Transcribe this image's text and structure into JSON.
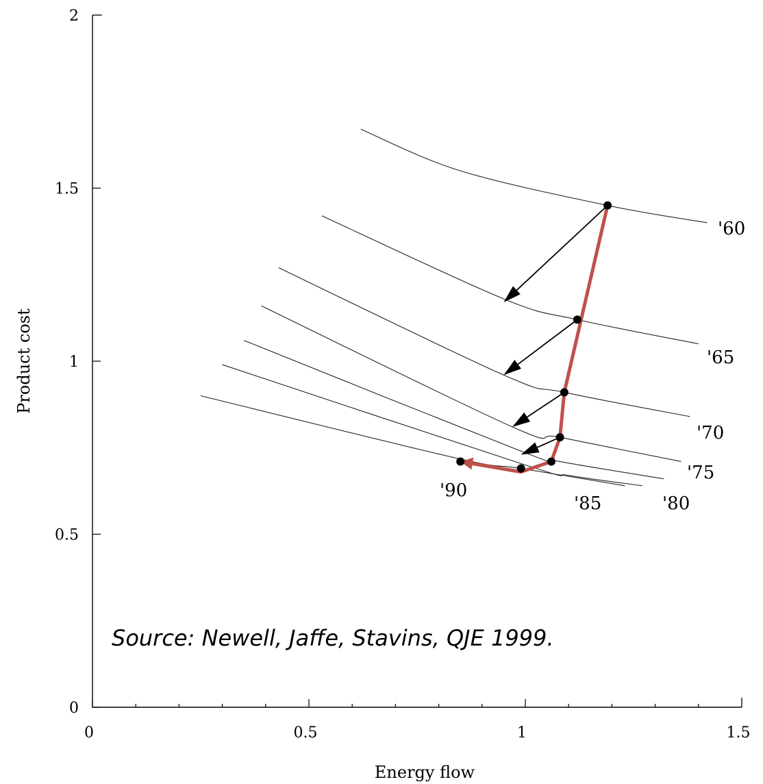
{
  "chart_data": {
    "type": "line",
    "xlabel": "Energy flow",
    "ylabel": "Product cost",
    "xlim": [
      0,
      1.5
    ],
    "ylim": [
      0,
      2
    ],
    "x_ticks": [
      "0",
      "0.5",
      "1",
      "1.5"
    ],
    "y_ticks": [
      "0",
      "0.5",
      "1",
      "1.5",
      "2"
    ],
    "grid": false,
    "series": [
      {
        "name": "'60",
        "points": [
          [
            0.62,
            1.67
          ],
          [
            0.85,
            1.55
          ],
          [
            1.19,
            1.45
          ],
          [
            1.42,
            1.4
          ]
        ]
      },
      {
        "name": "'65",
        "points": [
          [
            0.53,
            1.42
          ],
          [
            0.95,
            1.18
          ],
          [
            1.12,
            1.12
          ],
          [
            1.4,
            1.05
          ]
        ]
      },
      {
        "name": "'70",
        "points": [
          [
            0.43,
            1.27
          ],
          [
            0.95,
            0.96
          ],
          [
            1.09,
            0.91
          ],
          [
            1.38,
            0.84
          ]
        ]
      },
      {
        "name": "'75",
        "points": [
          [
            0.39,
            1.16
          ],
          [
            0.97,
            0.81
          ],
          [
            1.08,
            0.78
          ],
          [
            1.36,
            0.71
          ]
        ]
      },
      {
        "name": "'80",
        "points": [
          [
            0.35,
            1.06
          ],
          [
            0.99,
            0.74
          ],
          [
            1.08,
            0.71
          ],
          [
            1.32,
            0.66
          ]
        ]
      },
      {
        "name": "'85",
        "points": [
          [
            0.3,
            0.99
          ],
          [
            1.0,
            0.7
          ],
          [
            1.1,
            0.67
          ],
          [
            1.27,
            0.64
          ]
        ]
      },
      {
        "name": "'90",
        "points": [
          [
            0.25,
            0.9
          ],
          [
            0.84,
            0.72
          ],
          [
            0.99,
            0.69
          ],
          [
            1.23,
            0.64
          ]
        ]
      }
    ],
    "observed_points": [
      {
        "year": "'60",
        "x": 1.19,
        "y": 1.45
      },
      {
        "year": "'65",
        "x": 1.12,
        "y": 1.12
      },
      {
        "year": "'70",
        "x": 1.09,
        "y": 0.91
      },
      {
        "year": "'75",
        "x": 1.08,
        "y": 0.78
      },
      {
        "year": "'80",
        "x": 1.06,
        "y": 0.71
      },
      {
        "year": "'85",
        "x": 0.99,
        "y": 0.69
      },
      {
        "year": "'90",
        "x": 0.85,
        "y": 0.71
      }
    ],
    "shift_arrows": [
      {
        "from": [
          1.19,
          1.45
        ],
        "to": [
          0.95,
          1.17
        ]
      },
      {
        "from": [
          1.12,
          1.12
        ],
        "to": [
          0.95,
          0.96
        ]
      },
      {
        "from": [
          1.09,
          0.91
        ],
        "to": [
          0.97,
          0.81
        ]
      },
      {
        "from": [
          1.08,
          0.78
        ],
        "to": [
          0.99,
          0.73
        ]
      }
    ],
    "red_path": [
      [
        1.19,
        1.45
      ],
      [
        1.09,
        0.91
      ],
      [
        1.08,
        0.78
      ],
      [
        1.06,
        0.71
      ],
      [
        0.99,
        0.68
      ],
      [
        0.85,
        0.71
      ]
    ],
    "annotations": {
      "source": "Source: Newell, Jaffe, Stavins, QJE 1999."
    },
    "colors": {
      "path": "#c0504d",
      "curves": "#222222"
    }
  }
}
